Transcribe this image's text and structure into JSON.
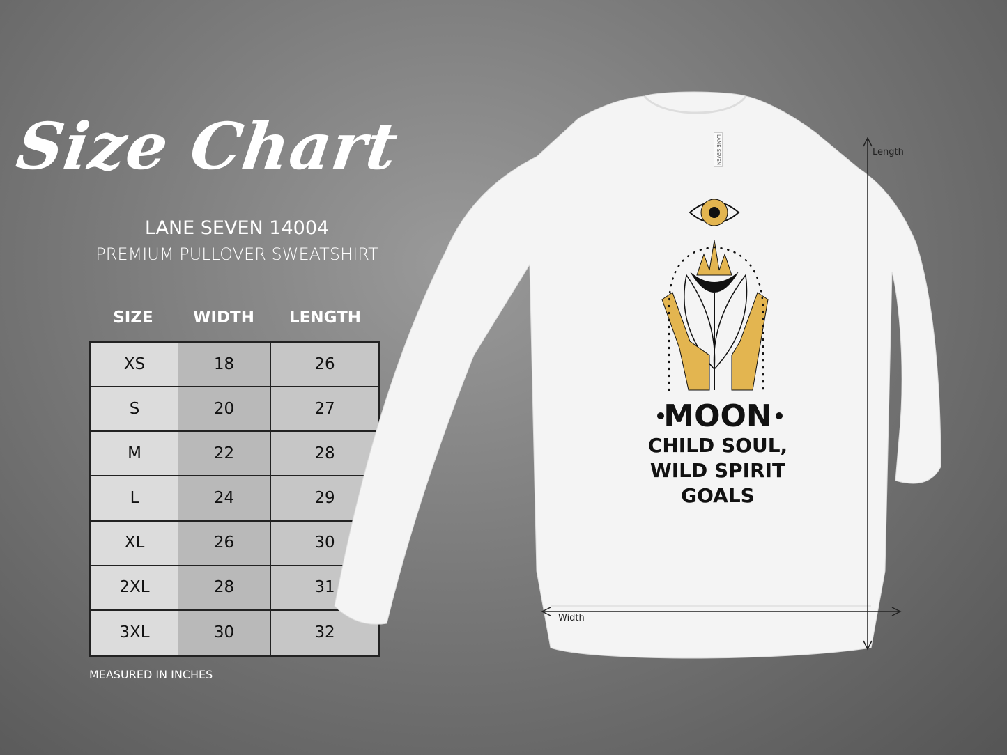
{
  "title": "Size Chart",
  "model": "LANE SEVEN 14004",
  "subtitle": "PREMIUM PULLOVER SWEATSHIRT",
  "table": {
    "headers": [
      "SIZE",
      "WIDTH",
      "LENGTH"
    ],
    "rows": [
      [
        "XS",
        "18",
        "26"
      ],
      [
        "S",
        "20",
        "27"
      ],
      [
        "M",
        "22",
        "28"
      ],
      [
        "L",
        "24",
        "29"
      ],
      [
        "XL",
        "26",
        "30"
      ],
      [
        "2XL",
        "28",
        "31"
      ],
      [
        "3XL",
        "30",
        "32"
      ]
    ]
  },
  "note": "MEASURED IN INCHES",
  "garment": {
    "tag": "LANE SEVEN",
    "print": {
      "line1": "MOON",
      "line2": "CHILD SOUL,",
      "line3": "WILD SPIRIT",
      "line4": "GOALS"
    },
    "length_label": "Length",
    "width_label": "Width",
    "accent_color": "#e3b550"
  }
}
